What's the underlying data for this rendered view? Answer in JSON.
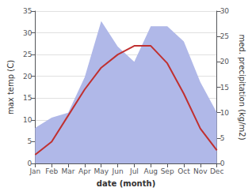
{
  "chart_data": {
    "type": "line",
    "xlabel": "date (month)",
    "ylabel": "max temp (C)",
    "y2label": "med. precipitation (kg/m2)",
    "categories": [
      "Jan",
      "Feb",
      "Mar",
      "Apr",
      "May",
      "Jun",
      "Jul",
      "Aug",
      "Sep",
      "Oct",
      "Nov",
      "Dec"
    ],
    "series": [
      {
        "type": "area",
        "axis": "y2",
        "color": "#b0b8e8",
        "values": [
          7,
          9,
          10,
          17,
          28,
          23,
          20,
          27,
          27,
          24,
          16,
          10
        ]
      },
      {
        "type": "line",
        "color": "#c03030",
        "values": [
          2,
          5,
          11,
          17,
          22,
          25,
          27,
          27,
          23,
          16,
          8,
          3
        ]
      }
    ],
    "ylim": [
      0,
      35
    ],
    "yticks": [
      0,
      5,
      10,
      15,
      20,
      25,
      30,
      35
    ],
    "y2lim": [
      0,
      30
    ],
    "y2ticks": [
      0,
      5,
      10,
      15,
      20,
      25,
      30
    ],
    "grid": true
  }
}
